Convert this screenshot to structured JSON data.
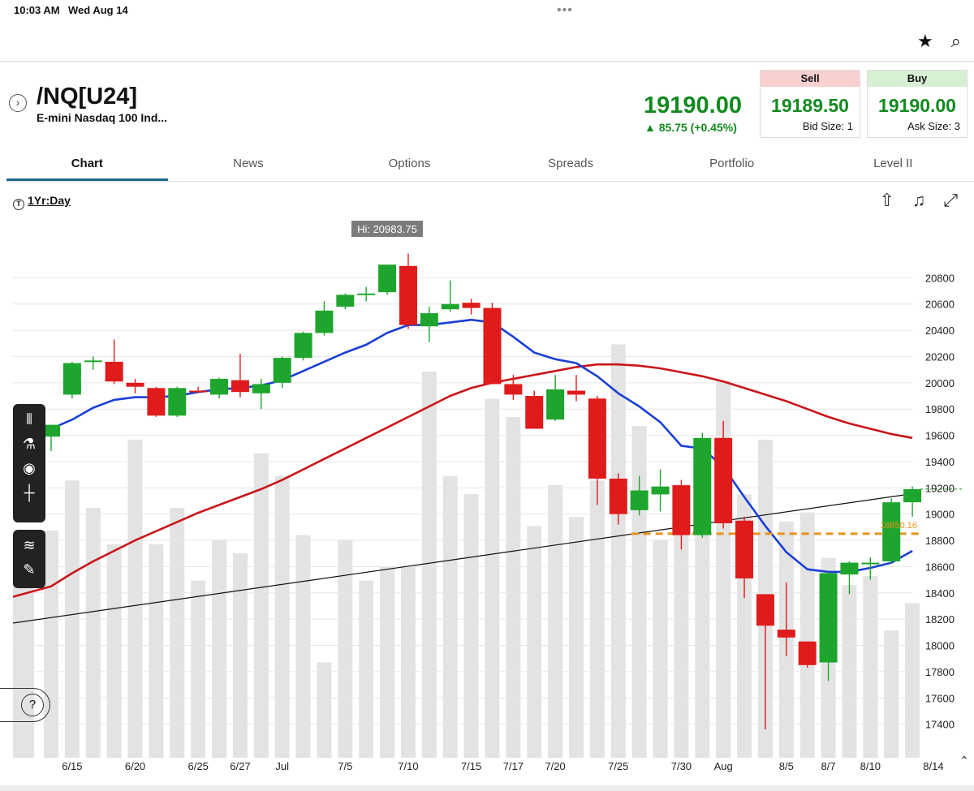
{
  "status": {
    "time": "10:03 AM",
    "date": "Wed Aug 14"
  },
  "header": {
    "symbol": "/NQ[U24]",
    "description": "E-mini Nasdaq 100 Ind...",
    "last_price": "19190.00",
    "change": "▲ 85.75 (+0.45%)"
  },
  "quotes": {
    "sell": {
      "label": "Sell",
      "price": "19189.50",
      "size": "Bid Size: 1"
    },
    "buy": {
      "label": "Buy",
      "price": "19190.00",
      "size": "Ask Size: 3"
    }
  },
  "tabs": [
    "Chart",
    "News",
    "Options",
    "Spreads",
    "Portfolio",
    "Level II"
  ],
  "chart_range": "1Yr:Day",
  "colors": {
    "up": "#1ea52d",
    "down": "#e01b1b",
    "ema_short": "#1a3fd6",
    "sma_long": "#c9161b",
    "alert": "#e8941c",
    "volume": "#e3e3e3"
  },
  "chart_data": {
    "type": "candlestick",
    "hi_label": "Hi: 20983.75",
    "ylim": [
      17200,
      21000
    ],
    "y_ticks": [
      17400,
      17600,
      17800,
      18000,
      18200,
      18400,
      18600,
      18800,
      19000,
      19200,
      19400,
      19600,
      19800,
      20000,
      20200,
      20400,
      20600,
      20800
    ],
    "x_labels": [
      {
        "label": "6/15",
        "index": 1
      },
      {
        "label": "6/20",
        "index": 4
      },
      {
        "label": "6/25",
        "index": 7
      },
      {
        "label": "6/27",
        "index": 9
      },
      {
        "label": "Jul",
        "index": 11
      },
      {
        "label": "7/5",
        "index": 14
      },
      {
        "label": "7/10",
        "index": 17
      },
      {
        "label": "7/15",
        "index": 20
      },
      {
        "label": "7/17",
        "index": 22
      },
      {
        "label": "7/20",
        "index": 24
      },
      {
        "label": "7/25",
        "index": 27
      },
      {
        "label": "7/30",
        "index": 30
      },
      {
        "label": "Aug",
        "index": 32
      },
      {
        "label": "8/5",
        "index": 35
      },
      {
        "label": "8/7",
        "index": 37
      },
      {
        "label": "8/10",
        "index": 39
      },
      {
        "label": "8/14",
        "index": 42
      }
    ],
    "candles": [
      {
        "o": 19590,
        "h": 19680,
        "l": 19480,
        "c": 19680
      },
      {
        "o": 19910,
        "h": 20160,
        "l": 19880,
        "c": 20150
      },
      {
        "o": 20160,
        "h": 20200,
        "l": 20100,
        "c": 20170
      },
      {
        "o": 20160,
        "h": 20330,
        "l": 19990,
        "c": 20010
      },
      {
        "o": 20000,
        "h": 20030,
        "l": 19920,
        "c": 19970
      },
      {
        "o": 19960,
        "h": 19970,
        "l": 19740,
        "c": 19750
      },
      {
        "o": 19750,
        "h": 19970,
        "l": 19740,
        "c": 19960
      },
      {
        "o": 19940,
        "h": 19970,
        "l": 19920,
        "c": 19930
      },
      {
        "o": 19910,
        "h": 20040,
        "l": 19880,
        "c": 20030
      },
      {
        "o": 20020,
        "h": 20220,
        "l": 19890,
        "c": 19930
      },
      {
        "o": 19920,
        "h": 20030,
        "l": 19800,
        "c": 19990
      },
      {
        "o": 20000,
        "h": 20200,
        "l": 19960,
        "c": 20190
      },
      {
        "o": 20190,
        "h": 20390,
        "l": 20170,
        "c": 20380
      },
      {
        "o": 20380,
        "h": 20620,
        "l": 20360,
        "c": 20550
      },
      {
        "o": 20580,
        "h": 20680,
        "l": 20560,
        "c": 20670
      },
      {
        "o": 20670,
        "h": 20730,
        "l": 20620,
        "c": 20680
      },
      {
        "o": 20690,
        "h": 20900,
        "l": 20670,
        "c": 20900
      },
      {
        "o": 20890,
        "h": 20983.75,
        "l": 20410,
        "c": 20440
      },
      {
        "o": 20430,
        "h": 20580,
        "l": 20310,
        "c": 20530
      },
      {
        "o": 20560,
        "h": 20780,
        "l": 20540,
        "c": 20600
      },
      {
        "o": 20610,
        "h": 20640,
        "l": 20520,
        "c": 20570
      },
      {
        "o": 20570,
        "h": 20610,
        "l": 19990,
        "c": 19990
      },
      {
        "o": 19990,
        "h": 20060,
        "l": 19870,
        "c": 19910
      },
      {
        "o": 19900,
        "h": 19940,
        "l": 19650,
        "c": 19650
      },
      {
        "o": 19720,
        "h": 20060,
        "l": 19710,
        "c": 19950
      },
      {
        "o": 19940,
        "h": 20060,
        "l": 19860,
        "c": 19910
      },
      {
        "o": 19880,
        "h": 19900,
        "l": 19070,
        "c": 19270
      },
      {
        "o": 19270,
        "h": 19310,
        "l": 18920,
        "c": 19000
      },
      {
        "o": 19030,
        "h": 19290,
        "l": 18990,
        "c": 19180
      },
      {
        "o": 19150,
        "h": 19340,
        "l": 19020,
        "c": 19210
      },
      {
        "o": 19220,
        "h": 19260,
        "l": 18730,
        "c": 18840
      },
      {
        "o": 18840,
        "h": 19620,
        "l": 18820,
        "c": 19580
      },
      {
        "o": 19580,
        "h": 19710,
        "l": 18890,
        "c": 18930
      },
      {
        "o": 18950,
        "h": 18980,
        "l": 18360,
        "c": 18510
      },
      {
        "o": 18390,
        "h": 18390,
        "l": 17360,
        "c": 18150
      },
      {
        "o": 18120,
        "h": 18480,
        "l": 17920,
        "c": 18060
      },
      {
        "o": 18030,
        "h": 18030,
        "l": 17830,
        "c": 17850
      },
      {
        "o": 17870,
        "h": 18560,
        "l": 17730,
        "c": 18550
      },
      {
        "o": 18540,
        "h": 18640,
        "l": 18390,
        "c": 18630
      },
      {
        "o": 18620,
        "h": 18670,
        "l": 18500,
        "c": 18630
      },
      {
        "o": 18640,
        "h": 19120,
        "l": 18620,
        "c": 19090
      },
      {
        "o": 19090,
        "h": 19210,
        "l": 18980,
        "c": 19190
      }
    ],
    "volume_relative": [
      0.5,
      0.61,
      0.55,
      0.47,
      0.7,
      0.47,
      0.55,
      0.39,
      0.48,
      0.45,
      0.67,
      0.62,
      0.49,
      0.21,
      0.48,
      0.39,
      0.42,
      0.42,
      0.85,
      0.62,
      0.58,
      0.79,
      0.75,
      0.51,
      0.6,
      0.53,
      0.61,
      0.91,
      0.73,
      0.48,
      0.55,
      0.58,
      0.83,
      0.58,
      0.7,
      0.52,
      0.54,
      0.44,
      0.38,
      0.4,
      0.28,
      0.34
    ],
    "ema_short": [
      19650,
      19720,
      19810,
      19870,
      19890,
      19890,
      19900,
      19930,
      19950,
      19960,
      19980,
      20020,
      20090,
      20160,
      20230,
      20290,
      20380,
      20440,
      20440,
      20460,
      20480,
      20460,
      20350,
      20230,
      20180,
      20150,
      20050,
      19920,
      19820,
      19700,
      19520,
      19500,
      19360,
      19130,
      18910,
      18710,
      18580,
      18560,
      18560,
      18590,
      18630,
      18720
    ],
    "sma_long": [
      18450,
      18550,
      18640,
      18720,
      18800,
      18870,
      18940,
      19010,
      19070,
      19130,
      19190,
      19260,
      19340,
      19420,
      19500,
      19580,
      19660,
      19740,
      19820,
      19900,
      19960,
      20000,
      20030,
      20060,
      20090,
      20120,
      20140,
      20140,
      20130,
      20110,
      20080,
      20050,
      20010,
      19960,
      19910,
      19860,
      19800,
      19740,
      19690,
      19650,
      19610,
      19580
    ],
    "trendline": {
      "start": {
        "index": -0.5,
        "value": 18170
      },
      "end": {
        "index": 42.5,
        "value": 19165
      }
    },
    "alert_line": {
      "value": 18850.16,
      "label": "18850.16",
      "from_index": 28
    },
    "last_marker": 19190
  }
}
